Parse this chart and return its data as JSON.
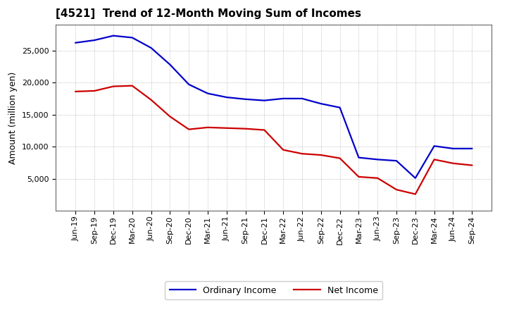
{
  "title": "[4521]  Trend of 12-Month Moving Sum of Incomes",
  "ylabel": "Amount (million yen)",
  "background_color": "#ffffff",
  "plot_bg_color": "#ffffff",
  "grid_color": "#999999",
  "title_fontsize": 11,
  "xlabel_fontsize": 8,
  "ylabel_fontsize": 9,
  "tick_labels": [
    "Jun-19",
    "Sep-19",
    "Dec-19",
    "Mar-20",
    "Jun-20",
    "Sep-20",
    "Dec-20",
    "Mar-21",
    "Jun-21",
    "Sep-21",
    "Dec-21",
    "Mar-22",
    "Jun-22",
    "Sep-22",
    "Dec-22",
    "Mar-23",
    "Jun-23",
    "Sep-23",
    "Dec-23",
    "Mar-24",
    "Jun-24",
    "Sep-24"
  ],
  "ordinary_income": [
    26200,
    26600,
    27300,
    27000,
    25400,
    22800,
    19700,
    18300,
    17700,
    17400,
    17200,
    17500,
    17500,
    16700,
    16100,
    8300,
    8000,
    7800,
    5100,
    10100,
    9700,
    9700
  ],
  "net_income": [
    18600,
    18700,
    19400,
    19500,
    17300,
    14700,
    12700,
    13000,
    12900,
    12800,
    12600,
    9500,
    8900,
    8700,
    8200,
    5300,
    5100,
    3300,
    2600,
    8000,
    7400,
    7100
  ],
  "ordinary_color": "#0000cc",
  "net_color": "#cc0000",
  "ylim_min": 0,
  "ylim_max": 29000,
  "yticks": [
    5000,
    10000,
    15000,
    20000,
    25000
  ],
  "line_width": 1.6,
  "legend_fontsize": 9
}
